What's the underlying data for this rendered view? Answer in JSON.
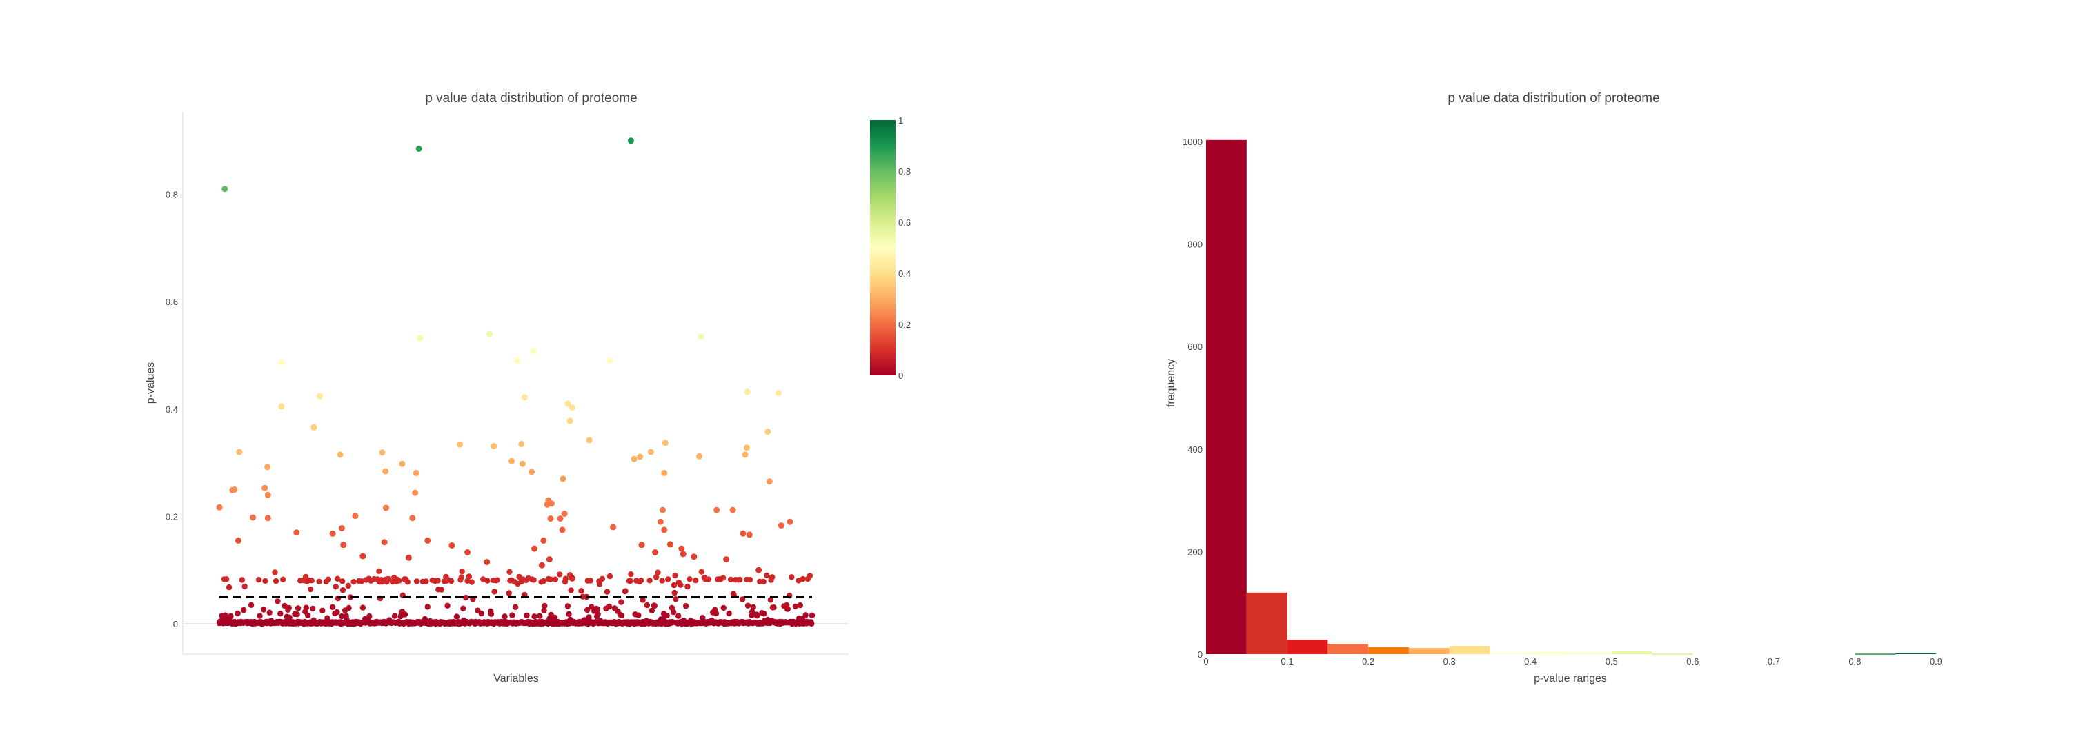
{
  "chart_data": [
    {
      "type": "scatter",
      "title": "p value data distribution of proteome",
      "xlabel": "Variables",
      "ylabel": "p-values",
      "ylim": [
        -0.055,
        0.95
      ],
      "y_ticks": [
        "0",
        "0.2",
        "0.4",
        "0.6",
        "0.8"
      ],
      "y_tick_values": [
        0,
        0.2,
        0.4,
        0.6,
        0.8
      ],
      "x_ticks_visible": false,
      "grid": false,
      "threshold_line": {
        "y": 0.05,
        "style": "dashed",
        "color": "#000000"
      },
      "colorbar": {
        "colorscale": "RdYlGn",
        "range": [
          0,
          1
        ],
        "ticks": [
          "0",
          "0.2",
          "0.4",
          "0.6",
          "0.8",
          "1"
        ],
        "tick_values": [
          0,
          0.2,
          0.4,
          0.6,
          0.8,
          1
        ],
        "placement": "right"
      },
      "n_variables": 1100,
      "highlighted_points": [
        {
          "x": 10,
          "y": 0.81
        },
        {
          "x": 370,
          "y": 0.885
        },
        {
          "x": 763,
          "y": 0.9
        },
        {
          "x": 115,
          "y": 0.487
        },
        {
          "x": 372,
          "y": 0.532
        },
        {
          "x": 501,
          "y": 0.54
        },
        {
          "x": 552,
          "y": 0.49
        },
        {
          "x": 582,
          "y": 0.508
        },
        {
          "x": 724,
          "y": 0.49
        },
        {
          "x": 893,
          "y": 0.535
        },
        {
          "x": 115,
          "y": 0.405
        },
        {
          "x": 186,
          "y": 0.424
        },
        {
          "x": 175,
          "y": 0.366
        },
        {
          "x": 566,
          "y": 0.422
        },
        {
          "x": 646,
          "y": 0.41
        },
        {
          "x": 650,
          "y": 0.378
        },
        {
          "x": 654,
          "y": 0.403
        },
        {
          "x": 979,
          "y": 0.432
        },
        {
          "x": 1037,
          "y": 0.43
        },
        {
          "x": 1017,
          "y": 0.358
        },
        {
          "x": 37,
          "y": 0.32
        },
        {
          "x": 224,
          "y": 0.315
        },
        {
          "x": 302,
          "y": 0.319
        },
        {
          "x": 339,
          "y": 0.298
        },
        {
          "x": 446,
          "y": 0.334
        },
        {
          "x": 509,
          "y": 0.331
        },
        {
          "x": 542,
          "y": 0.303
        },
        {
          "x": 560,
          "y": 0.335
        },
        {
          "x": 562,
          "y": 0.298
        },
        {
          "x": 686,
          "y": 0.342
        },
        {
          "x": 769,
          "y": 0.307
        },
        {
          "x": 780,
          "y": 0.311
        },
        {
          "x": 800,
          "y": 0.32
        },
        {
          "x": 827,
          "y": 0.337
        },
        {
          "x": 890,
          "y": 0.312
        },
        {
          "x": 975,
          "y": 0.315
        },
        {
          "x": 978,
          "y": 0.328
        },
        {
          "x": 89,
          "y": 0.292
        },
        {
          "x": 365,
          "y": 0.281
        },
        {
          "x": 308,
          "y": 0.284
        },
        {
          "x": 825,
          "y": 0.281
        },
        {
          "x": 579,
          "y": 0.283
        },
        {
          "x": 637,
          "y": 0.27
        },
        {
          "x": 1020,
          "y": 0.265
        },
        {
          "x": 84,
          "y": 0.253
        },
        {
          "x": 90,
          "y": 0.24
        },
        {
          "x": 24,
          "y": 0.249
        },
        {
          "x": 28,
          "y": 0.25
        },
        {
          "x": 363,
          "y": 0.244
        },
        {
          "x": 616,
          "y": 0.224
        },
        {
          "x": 608,
          "y": 0.222
        },
        {
          "x": 610,
          "y": 0.23
        },
        {
          "x": 0,
          "y": 0.217
        },
        {
          "x": 309,
          "y": 0.216
        },
        {
          "x": 640,
          "y": 0.205
        },
        {
          "x": 62,
          "y": 0.198
        },
        {
          "x": 90,
          "y": 0.197
        },
        {
          "x": 252,
          "y": 0.201
        },
        {
          "x": 358,
          "y": 0.197
        },
        {
          "x": 614,
          "y": 0.196
        },
        {
          "x": 632,
          "y": 0.196
        },
        {
          "x": 922,
          "y": 0.212
        },
        {
          "x": 952,
          "y": 0.212
        },
        {
          "x": 1058,
          "y": 0.19
        },
        {
          "x": 1042,
          "y": 0.183
        },
        {
          "x": 730,
          "y": 0.18
        },
        {
          "x": 818,
          "y": 0.19
        },
        {
          "x": 822,
          "y": 0.212
        },
        {
          "x": 983,
          "y": 0.166
        },
        {
          "x": 143,
          "y": 0.17
        },
        {
          "x": 210,
          "y": 0.168
        },
        {
          "x": 227,
          "y": 0.178
        },
        {
          "x": 636,
          "y": 0.175
        },
        {
          "x": 825,
          "y": 0.175
        },
        {
          "x": 971,
          "y": 0.168
        },
        {
          "x": 35,
          "y": 0.155
        },
        {
          "x": 230,
          "y": 0.147
        },
        {
          "x": 306,
          "y": 0.152
        },
        {
          "x": 386,
          "y": 0.155
        },
        {
          "x": 431,
          "y": 0.146
        },
        {
          "x": 460,
          "y": 0.133
        },
        {
          "x": 584,
          "y": 0.14
        },
        {
          "x": 601,
          "y": 0.155
        },
        {
          "x": 783,
          "y": 0.147
        },
        {
          "x": 808,
          "y": 0.133
        },
        {
          "x": 836,
          "y": 0.148
        },
        {
          "x": 857,
          "y": 0.14
        },
        {
          "x": 860,
          "y": 0.13
        },
        {
          "x": 266,
          "y": 0.126
        },
        {
          "x": 351,
          "y": 0.123
        },
        {
          "x": 496,
          "y": 0.115
        },
        {
          "x": 598,
          "y": 0.109
        },
        {
          "x": 612,
          "y": 0.12
        },
        {
          "x": 880,
          "y": 0.125
        },
        {
          "x": 940,
          "y": 0.12
        },
        {
          "x": 1000,
          "y": 0.1
        }
      ]
    },
    {
      "type": "bar",
      "title": "p value data distribution of proteome",
      "xlabel": "p-value ranges",
      "ylabel": "frequency",
      "xlim": [
        0,
        0.9
      ],
      "ylim": [
        0,
        1000
      ],
      "x_ticks": [
        "0",
        "0.1",
        "0.2",
        "0.3",
        "0.4",
        "0.5",
        "0.6",
        "0.7",
        "0.8",
        "0.9"
      ],
      "x_tick_values": [
        0,
        0.1,
        0.2,
        0.3,
        0.4,
        0.5,
        0.6,
        0.7,
        0.8,
        0.9
      ],
      "y_ticks": [
        "0",
        "200",
        "400",
        "600",
        "800",
        "1000"
      ],
      "y_tick_values": [
        0,
        200,
        400,
        600,
        800,
        1000
      ],
      "bin_width": 0.05,
      "bins": [
        {
          "x0": 0.0,
          "count": 1003,
          "color": "#a50026"
        },
        {
          "x0": 0.05,
          "count": 120,
          "color": "#d73027"
        },
        {
          "x0": 0.1,
          "count": 28,
          "color": "#e31a1c"
        },
        {
          "x0": 0.15,
          "count": 20,
          "color": "#f46d43"
        },
        {
          "x0": 0.2,
          "count": 14,
          "color": "#f57a0c"
        },
        {
          "x0": 0.25,
          "count": 12,
          "color": "#fdae61"
        },
        {
          "x0": 0.3,
          "count": 16,
          "color": "#fee08b"
        },
        {
          "x0": 0.35,
          "count": 2,
          "color": "#ffffbf"
        },
        {
          "x0": 0.4,
          "count": 4,
          "color": "#ffffbf"
        },
        {
          "x0": 0.45,
          "count": 3,
          "color": "#fcf8c0"
        },
        {
          "x0": 0.5,
          "count": 5,
          "color": "#e6f598"
        },
        {
          "x0": 0.55,
          "count": 1,
          "color": "#d9ef8b"
        },
        {
          "x0": 0.6,
          "count": 0,
          "color": "#a6d96a"
        },
        {
          "x0": 0.65,
          "count": 0,
          "color": "#91cf60"
        },
        {
          "x0": 0.7,
          "count": 0,
          "color": "#66bd63"
        },
        {
          "x0": 0.75,
          "count": 0,
          "color": "#1a9850"
        },
        {
          "x0": 0.8,
          "count": 1,
          "color": "#1a9850"
        },
        {
          "x0": 0.85,
          "count": 2,
          "color": "#006837"
        }
      ]
    }
  ]
}
